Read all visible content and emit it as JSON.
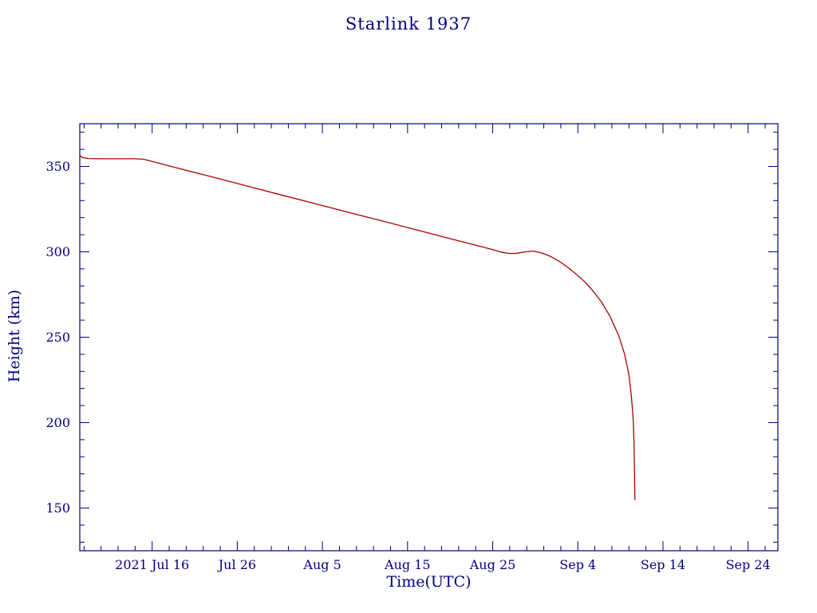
{
  "page": {
    "title": "Starlink 1937"
  },
  "chart_data": {
    "type": "line",
    "title": "Starlink 1937",
    "xlabel": "Time(UTC)",
    "ylabel": "Height (km)",
    "x_unit": "days since 2021-07-01 (e.g. 15 = 2021 Jul 16)",
    "xlim": [
      6.5,
      88.5
    ],
    "ylim": [
      125,
      375
    ],
    "x_ticks": [
      {
        "value": 15,
        "label": "2021 Jul 16"
      },
      {
        "value": 25,
        "label": "Jul 26"
      },
      {
        "value": 35,
        "label": "Aug 5"
      },
      {
        "value": 45,
        "label": "Aug 15"
      },
      {
        "value": 55,
        "label": "Aug 25"
      },
      {
        "value": 65,
        "label": "Sep 4"
      },
      {
        "value": 75,
        "label": "Sep 14"
      },
      {
        "value": 85,
        "label": "Sep 24"
      }
    ],
    "x_minor_interval": 2,
    "y_ticks": [
      {
        "value": 150,
        "label": "150"
      },
      {
        "value": 200,
        "label": "200"
      },
      {
        "value": 250,
        "label": "250"
      },
      {
        "value": 300,
        "label": "300"
      },
      {
        "value": 350,
        "label": "350"
      }
    ],
    "y_minor_interval": 10,
    "grid": false,
    "legend": "none",
    "colors": {
      "line": "#aa0000",
      "axis": "#000080",
      "text": "#000080",
      "background": "#ffffff"
    },
    "series": [
      {
        "name": "Starlink 1937 orbital height",
        "color": "#aa0000",
        "points": [
          [
            6.5,
            356.5
          ],
          [
            6.8,
            355.2
          ],
          [
            7.5,
            354.6
          ],
          [
            9,
            354.5
          ],
          [
            11,
            354.5
          ],
          [
            13,
            354.5
          ],
          [
            14,
            354.2
          ],
          [
            18,
            349.0
          ],
          [
            22,
            343.9
          ],
          [
            26,
            338.7
          ],
          [
            30,
            333.5
          ],
          [
            34,
            328.4
          ],
          [
            38,
            323.2
          ],
          [
            42,
            318.1
          ],
          [
            46,
            312.9
          ],
          [
            50,
            307.7
          ],
          [
            53,
            303.9
          ],
          [
            55,
            301.3
          ],
          [
            56,
            299.8
          ],
          [
            57,
            299.0
          ],
          [
            57.8,
            299.1
          ],
          [
            58.8,
            300.0
          ],
          [
            59.8,
            300.4
          ],
          [
            60.8,
            299.3
          ],
          [
            61.8,
            297.3
          ],
          [
            62.8,
            294.5
          ],
          [
            63.8,
            291.0
          ],
          [
            64.8,
            287.0
          ],
          [
            65.8,
            282.5
          ],
          [
            66.8,
            277.0
          ],
          [
            67.8,
            270.5
          ],
          [
            68.8,
            262.0
          ],
          [
            69.8,
            251.0
          ],
          [
            70.5,
            240.0
          ],
          [
            71.0,
            228.0
          ],
          [
            71.3,
            215.0
          ],
          [
            71.5,
            202.0
          ],
          [
            71.6,
            188.0
          ],
          [
            71.65,
            172.0
          ],
          [
            71.7,
            155.0
          ]
        ]
      }
    ]
  }
}
